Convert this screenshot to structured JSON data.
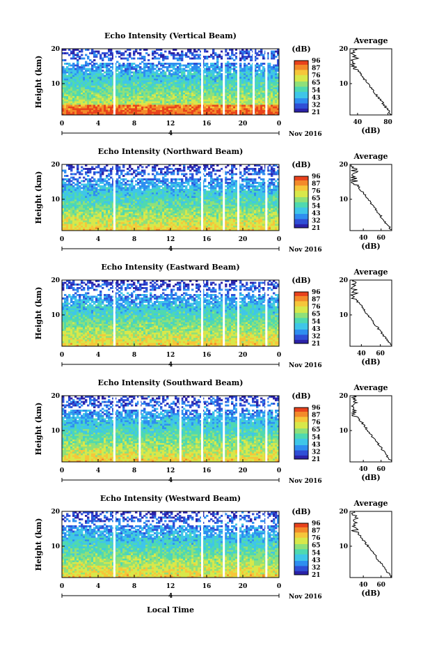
{
  "colors": {
    "scale": [
      "#2b22a8",
      "#2f4fd6",
      "#2e8ef0",
      "#3fc6e8",
      "#4fd9b0",
      "#8fe07a",
      "#d8e84a",
      "#f6c63a",
      "#f38a2a",
      "#e8421c"
    ],
    "gap": "#ffffff"
  },
  "common": {
    "ylabel": "Height (km)",
    "x_ticks": [
      "0",
      "4",
      "8",
      "12",
      "16",
      "20",
      "0"
    ],
    "date_label": "4",
    "month_label": "Nov 2016",
    "cbar_unit": "(dB)",
    "avg_title": "Average",
    "avg_xlabel": "(dB)",
    "y_ticks": [
      "20",
      "10"
    ],
    "xlabel": "Local Time"
  },
  "chart_data": [
    {
      "type": "heatmap",
      "title": "Echo Intensity (Vertical Beam)",
      "x_range": [
        0,
        24
      ],
      "y_range": [
        1,
        20
      ],
      "colorbar_ticks": [
        "96",
        "87",
        "76",
        "65",
        "54",
        "43",
        "32",
        "21"
      ],
      "avg_ticks": [
        "40",
        "80"
      ],
      "avg_xlim": [
        30,
        85
      ],
      "gaps_hours": [
        5.8,
        15.5,
        17.9,
        19.5,
        21.2,
        22.6
      ]
    },
    {
      "type": "heatmap",
      "title": "Echo Intensity (Northward Beam)",
      "x_range": [
        0,
        24
      ],
      "y_range": [
        1,
        20
      ],
      "colorbar_ticks": [
        "96",
        "87",
        "76",
        "65",
        "54",
        "43",
        "32",
        "21"
      ],
      "avg_ticks": [
        "40",
        "60"
      ],
      "avg_xlim": [
        25,
        72
      ],
      "gaps_hours": [
        5.8,
        15.5,
        17.9,
        19.5,
        22.6
      ]
    },
    {
      "type": "heatmap",
      "title": "Echo Intensity (Eastward Beam)",
      "x_range": [
        0,
        24
      ],
      "y_range": [
        1,
        20
      ],
      "colorbar_ticks": [
        "96",
        "87",
        "76",
        "65",
        "54",
        "43",
        "32",
        "21"
      ],
      "avg_ticks": [
        "40",
        "60"
      ],
      "avg_xlim": [
        28,
        72
      ],
      "gaps_hours": [
        5.8,
        15.5,
        17.9,
        19.5,
        22.6
      ]
    },
    {
      "type": "heatmap",
      "title": "Echo Intensity (Southward Beam)",
      "x_range": [
        0,
        24
      ],
      "y_range": [
        1,
        20
      ],
      "colorbar_ticks": [
        "96",
        "87",
        "76",
        "65",
        "54",
        "43",
        "32",
        "21"
      ],
      "avg_ticks": [
        "40",
        "60"
      ],
      "avg_xlim": [
        25,
        72
      ],
      "gaps_hours": [
        5.8,
        8.6,
        13.1,
        15.5,
        17.9,
        19.5,
        22.6
      ]
    },
    {
      "type": "heatmap",
      "title": "Echo Intensity (Westward Beam)",
      "x_range": [
        0,
        24
      ],
      "y_range": [
        1,
        20
      ],
      "colorbar_ticks": [
        "96",
        "87",
        "76",
        "65",
        "54",
        "43",
        "32",
        "21"
      ],
      "avg_ticks": [
        "40",
        "60"
      ],
      "avg_xlim": [
        25,
        72
      ],
      "gaps_hours": [
        5.8,
        15.5,
        17.9,
        19.5,
        22.6
      ]
    }
  ]
}
